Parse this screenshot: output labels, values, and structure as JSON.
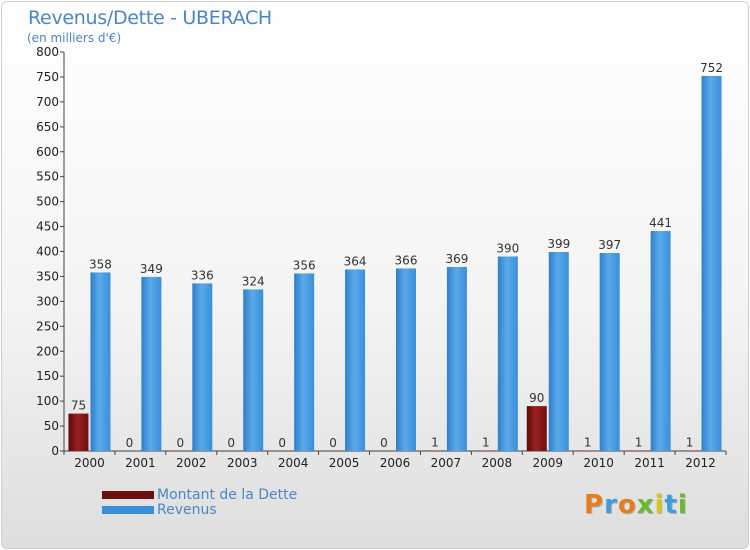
{
  "title": "Revenus/Dette - UBERACH",
  "subtitle": "(en milliers d'€)",
  "logo": "Proxiti",
  "colors": {
    "debt": "#7a1010",
    "revenue": "#3a8fdc",
    "revenue_light": "#5aaae8",
    "title": "#4a86c8"
  },
  "chart_data": {
    "type": "bar",
    "title": "Revenus/Dette - UBERACH",
    "ylabel": "(en milliers d'€)",
    "categories": [
      "2000",
      "2001",
      "2002",
      "2003",
      "2004",
      "2005",
      "2006",
      "2007",
      "2008",
      "2009",
      "2010",
      "2011",
      "2012"
    ],
    "series": [
      {
        "name": "Montant de la Dette",
        "color": "#7a1010",
        "values": [
          75,
          0,
          0,
          0,
          0,
          0,
          0,
          1,
          1,
          90,
          1,
          1,
          1
        ]
      },
      {
        "name": "Revenus",
        "color": "#3a8fdc",
        "values": [
          358,
          349,
          336,
          324,
          356,
          364,
          366,
          369,
          390,
          399,
          397,
          441,
          752
        ]
      }
    ],
    "ylim": [
      0,
      800
    ],
    "yticks": [
      0,
      50,
      100,
      150,
      200,
      250,
      300,
      350,
      400,
      450,
      500,
      550,
      600,
      650,
      700,
      750,
      800
    ],
    "grid": false,
    "legend": "bottom-left"
  }
}
